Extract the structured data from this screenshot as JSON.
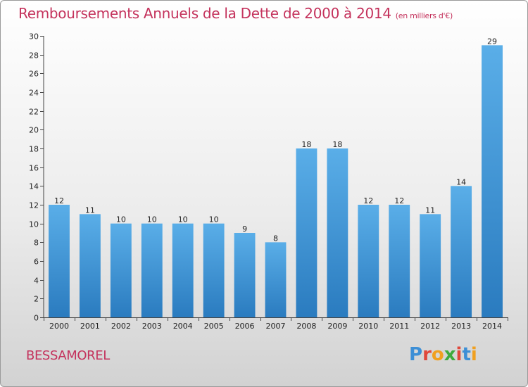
{
  "header": {
    "title": "Remboursements Annuels de la Dette de 2000 à 2014",
    "subtitle": "(en milliers d'€)"
  },
  "footer": {
    "commune": "BESSAMOREL",
    "logo": "Proxiti"
  },
  "colors": {
    "title": "#c4325c",
    "bar_top": "#5aaee8",
    "bar_bottom": "#2a7bbf"
  },
  "chart_data": {
    "type": "bar",
    "title": "Remboursements Annuels de la Dette de 2000 à 2014",
    "categories": [
      "2000",
      "2001",
      "2002",
      "2003",
      "2004",
      "2005",
      "2006",
      "2007",
      "2008",
      "2009",
      "2010",
      "2011",
      "2012",
      "2013",
      "2014"
    ],
    "values": [
      12,
      11,
      10,
      10,
      10,
      10,
      9,
      8,
      18,
      18,
      12,
      12,
      11,
      14,
      29
    ],
    "value_labels": [
      "12",
      "11",
      "10",
      "10",
      "10",
      "10",
      "9",
      "8",
      "18",
      "18",
      "12",
      "12",
      "11",
      "14",
      "29"
    ],
    "yticks": [
      0,
      2,
      4,
      6,
      8,
      10,
      12,
      14,
      16,
      18,
      20,
      22,
      24,
      26,
      28,
      30
    ],
    "ylim": [
      0,
      30
    ],
    "grid": false,
    "legend": "none"
  }
}
